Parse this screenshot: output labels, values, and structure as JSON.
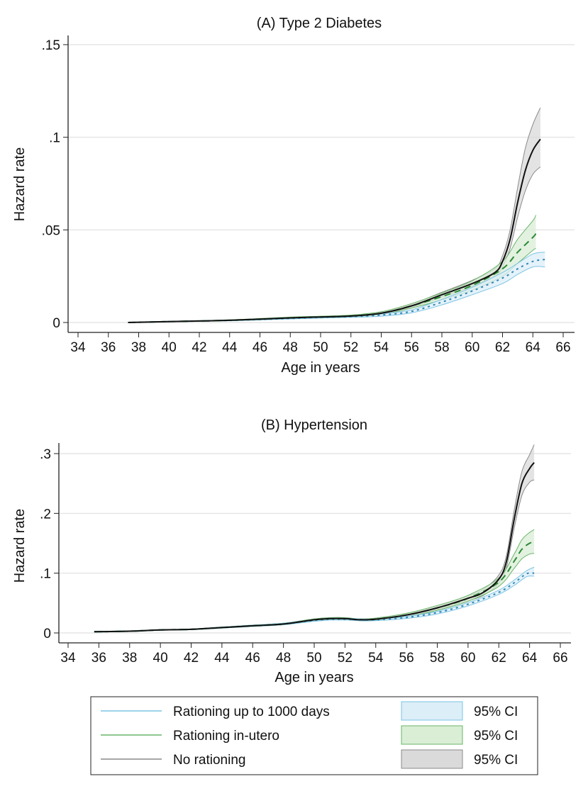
{
  "chart_data": [
    {
      "type": "line",
      "title": "(A) Type 2 Diabetes",
      "xlabel": "Age in years",
      "ylabel": "Hazard rate",
      "xlim": [
        33.5,
        66.5
      ],
      "ylim": [
        0,
        0.155
      ],
      "xticks": [
        34,
        36,
        38,
        40,
        42,
        44,
        46,
        48,
        50,
        52,
        54,
        56,
        58,
        60,
        62,
        64,
        66
      ],
      "yticks": [
        0,
        0.05,
        0.1,
        0.15
      ],
      "ytick_labels": [
        "0",
        ".05",
        ".1",
        ".15"
      ],
      "grid": true,
      "series": [
        {
          "name": "Rationing up to 1000 days",
          "style": "dotted",
          "color": "#2f86b4",
          "ci_fill": "#dceef8",
          "ci_line": "#7cc4e4",
          "x": [
            37.3,
            40,
            44,
            48,
            50,
            52,
            54,
            56,
            58,
            60,
            62,
            63,
            64,
            64.8
          ],
          "y": [
            0,
            0.0005,
            0.0011,
            0.0022,
            0.0028,
            0.0032,
            0.004,
            0.006,
            0.011,
            0.017,
            0.024,
            0.029,
            0.033,
            0.034
          ],
          "lo": [
            0,
            0.0004,
            0.0009,
            0.0019,
            0.0024,
            0.0028,
            0.0034,
            0.0052,
            0.0095,
            0.015,
            0.021,
            0.026,
            0.03,
            0.03
          ],
          "hi": [
            0,
            0.0006,
            0.0013,
            0.0025,
            0.0032,
            0.0036,
            0.0047,
            0.0069,
            0.0125,
            0.019,
            0.027,
            0.032,
            0.037,
            0.038
          ]
        },
        {
          "name": "Rationing in-utero",
          "style": "dashed",
          "color": "#2a8a36",
          "ci_fill": "#d9eed5",
          "ci_line": "#6ab46a",
          "x": [
            37.3,
            40,
            44,
            48,
            50,
            52,
            54,
            56,
            58,
            60,
            62,
            63,
            64,
            64.2
          ],
          "y": [
            0,
            0.0005,
            0.0012,
            0.0025,
            0.003,
            0.0035,
            0.005,
            0.009,
            0.014,
            0.02,
            0.029,
            0.038,
            0.046,
            0.048
          ],
          "lo": [
            0,
            0.0004,
            0.001,
            0.0021,
            0.0026,
            0.003,
            0.0043,
            0.0078,
            0.0122,
            0.0175,
            0.025,
            0.032,
            0.039,
            0.04
          ],
          "hi": [
            0,
            0.0006,
            0.0014,
            0.0029,
            0.0034,
            0.004,
            0.0058,
            0.0102,
            0.016,
            0.0225,
            0.033,
            0.045,
            0.055,
            0.058
          ]
        },
        {
          "name": "No rationing",
          "style": "solid",
          "color": "#111111",
          "ci_fill": "#dadada",
          "ci_line": "#8a8a8a",
          "x": [
            37.3,
            40,
            44,
            48,
            50,
            52,
            54,
            56,
            58,
            60,
            61.5,
            62,
            62.5,
            63,
            63.5,
            64,
            64.5
          ],
          "y": [
            0,
            0.0005,
            0.0012,
            0.0025,
            0.003,
            0.0035,
            0.005,
            0.009,
            0.015,
            0.021,
            0.027,
            0.033,
            0.045,
            0.065,
            0.082,
            0.093,
            0.099
          ],
          "lo": [
            0,
            0.0004,
            0.001,
            0.0022,
            0.0027,
            0.0031,
            0.0045,
            0.0082,
            0.0138,
            0.0195,
            0.025,
            0.03,
            0.04,
            0.057,
            0.071,
            0.08,
            0.084
          ],
          "hi": [
            0,
            0.0006,
            0.0014,
            0.0028,
            0.0033,
            0.0039,
            0.0056,
            0.0099,
            0.0163,
            0.0228,
            0.029,
            0.036,
            0.05,
            0.073,
            0.094,
            0.107,
            0.116
          ]
        }
      ]
    },
    {
      "type": "line",
      "title": "(B) Hypertension",
      "xlabel": "Age in years",
      "ylabel": "Hazard rate",
      "xlim": [
        33.5,
        66.5
      ],
      "ylim": [
        0,
        0.31
      ],
      "xticks": [
        34,
        36,
        38,
        40,
        42,
        44,
        46,
        48,
        50,
        52,
        54,
        56,
        58,
        60,
        62,
        64,
        66
      ],
      "yticks": [
        0,
        0.1,
        0.2,
        0.3
      ],
      "ytick_labels": [
        "0",
        ".1",
        ".2",
        ".3"
      ],
      "grid": true,
      "series": [
        {
          "name": "Rationing up to 1000 days",
          "style": "dotted",
          "color": "#2f86b4",
          "ci_fill": "#dceef8",
          "ci_line": "#7cc4e4",
          "x": [
            35.7,
            38,
            40,
            42,
            44,
            46,
            48,
            50,
            51,
            52,
            53,
            54,
            56,
            58,
            60,
            62,
            63,
            63.8,
            64.3
          ],
          "y": [
            0.002,
            0.003,
            0.005,
            0.006,
            0.009,
            0.012,
            0.015,
            0.021,
            0.023,
            0.023,
            0.022,
            0.022,
            0.026,
            0.034,
            0.048,
            0.068,
            0.084,
            0.099,
            0.1
          ],
          "lo": [
            0.0015,
            0.0025,
            0.0045,
            0.0055,
            0.0082,
            0.011,
            0.0138,
            0.0195,
            0.0215,
            0.0215,
            0.0205,
            0.0205,
            0.0243,
            0.0318,
            0.0452,
            0.0645,
            0.0795,
            0.094,
            0.095
          ],
          "hi": [
            0.0025,
            0.0035,
            0.0055,
            0.0065,
            0.0098,
            0.013,
            0.0162,
            0.0225,
            0.0245,
            0.0245,
            0.0235,
            0.0235,
            0.0277,
            0.0362,
            0.0508,
            0.0715,
            0.0885,
            0.104,
            0.11
          ]
        },
        {
          "name": "Rationing in-utero",
          "style": "dashed",
          "color": "#2a8a36",
          "ci_fill": "#d9eed5",
          "ci_line": "#6ab46a",
          "x": [
            35.7,
            38,
            40,
            42,
            44,
            46,
            48,
            50,
            51,
            52,
            53,
            54,
            56,
            58,
            60,
            62,
            63,
            63.5,
            64,
            64.3
          ],
          "y": [
            0.002,
            0.003,
            0.005,
            0.006,
            0.009,
            0.012,
            0.015,
            0.022,
            0.024,
            0.024,
            0.022,
            0.023,
            0.03,
            0.042,
            0.058,
            0.085,
            0.12,
            0.14,
            0.15,
            0.152
          ],
          "lo": [
            0.0015,
            0.0025,
            0.0045,
            0.0055,
            0.0082,
            0.011,
            0.0138,
            0.0205,
            0.0225,
            0.0225,
            0.0205,
            0.0212,
            0.0272,
            0.038,
            0.053,
            0.078,
            0.108,
            0.124,
            0.132,
            0.133
          ],
          "hi": [
            0.0025,
            0.0035,
            0.0055,
            0.0065,
            0.0098,
            0.013,
            0.0162,
            0.0235,
            0.0255,
            0.0255,
            0.0235,
            0.0248,
            0.0328,
            0.046,
            0.063,
            0.092,
            0.132,
            0.156,
            0.168,
            0.173
          ]
        },
        {
          "name": "No rationing",
          "style": "solid",
          "color": "#111111",
          "ci_fill": "#dadada",
          "ci_line": "#8a8a8a",
          "x": [
            35.7,
            38,
            40,
            42,
            44,
            46,
            48,
            50,
            51,
            52,
            53,
            54,
            56,
            58,
            60,
            61,
            62,
            62.5,
            63,
            63.5,
            64,
            64.3
          ],
          "y": [
            0.002,
            0.003,
            0.005,
            0.006,
            0.009,
            0.012,
            0.015,
            0.022,
            0.024,
            0.024,
            0.022,
            0.023,
            0.03,
            0.042,
            0.058,
            0.068,
            0.09,
            0.12,
            0.19,
            0.25,
            0.275,
            0.285
          ],
          "lo": [
            0.0015,
            0.0025,
            0.0045,
            0.0055,
            0.0082,
            0.011,
            0.0138,
            0.0205,
            0.0225,
            0.0225,
            0.0205,
            0.0212,
            0.0278,
            0.039,
            0.054,
            0.063,
            0.083,
            0.11,
            0.175,
            0.23,
            0.252,
            0.256
          ],
          "hi": [
            0.0025,
            0.0035,
            0.0055,
            0.0065,
            0.0098,
            0.013,
            0.0162,
            0.0235,
            0.0255,
            0.0255,
            0.0235,
            0.0248,
            0.0322,
            0.045,
            0.062,
            0.073,
            0.097,
            0.13,
            0.205,
            0.27,
            0.298,
            0.315
          ]
        }
      ]
    }
  ],
  "legend": {
    "placement": "bottom",
    "items": [
      {
        "label": "Rationing up to 1000 days",
        "ci_label": "95% CI",
        "line": "#7cc4e4",
        "fill": "#dceef8",
        "border": "#7cc4e4"
      },
      {
        "label": "Rationing in-utero",
        "ci_label": "95% CI",
        "line": "#6ab46a",
        "fill": "#d9eed5",
        "border": "#6ab46a"
      },
      {
        "label": "No rationing",
        "ci_label": "95% CI",
        "line": "#8a8a8a",
        "fill": "#dadada",
        "border": "#8a8a8a"
      }
    ]
  }
}
